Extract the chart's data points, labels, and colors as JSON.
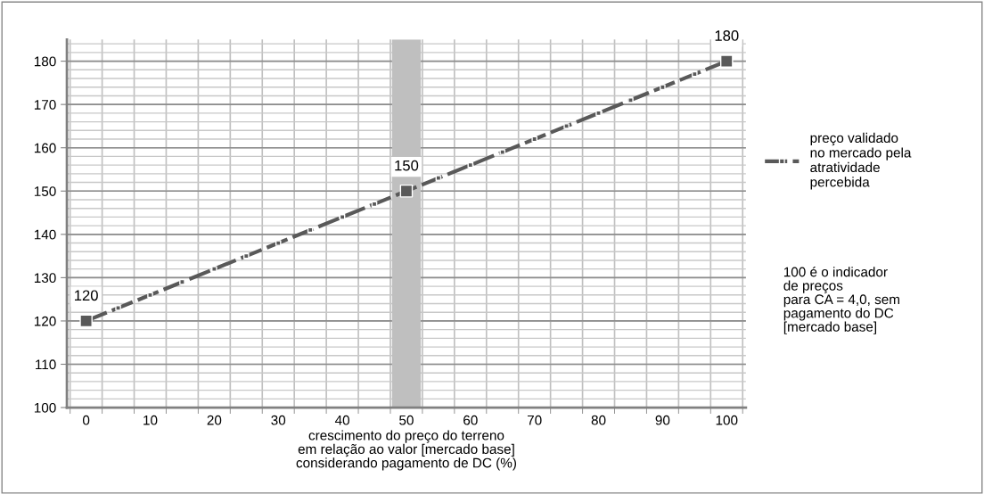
{
  "chart_data": {
    "type": "line",
    "xlabel": "crescimento do preço do terreno\nem relação ao valor [mercado base]\nconsiderando pagamento de DC (%)",
    "categories": [
      "0",
      null,
      "10",
      null,
      "20",
      null,
      "30",
      null,
      "40",
      null,
      "50",
      null,
      "60",
      null,
      "70",
      null,
      "80",
      null,
      "90",
      null,
      "100"
    ],
    "series": [
      {
        "name": "preço validado\nno mercado pela\natratividade\npercebida",
        "color": "#595959",
        "values": [
          120,
          123,
          126,
          129,
          132,
          135,
          138,
          141,
          144,
          147,
          150,
          153,
          156,
          159,
          162,
          165,
          168,
          171,
          174,
          177,
          180
        ],
        "value_labels": [
          "120",
          null,
          null,
          null,
          null,
          null,
          null,
          null,
          null,
          null,
          "150",
          null,
          null,
          null,
          null,
          null,
          null,
          null,
          null,
          null,
          "180"
        ]
      }
    ],
    "ylim": [
      100,
      185
    ],
    "yticks": [
      100,
      110,
      120,
      130,
      140,
      150,
      160,
      170,
      180
    ],
    "bands": [
      {
        "axis": "x",
        "from": "50",
        "to": "50",
        "color": "#bfbfbf"
      }
    ],
    "annotations": [
      "100 é o indicador\nde preços\npara CA = 4,0, sem\npagamento do DC\n[mercado base]"
    ],
    "grid": true,
    "legend": "right",
    "marker": "square",
    "line_style": "dashed"
  }
}
